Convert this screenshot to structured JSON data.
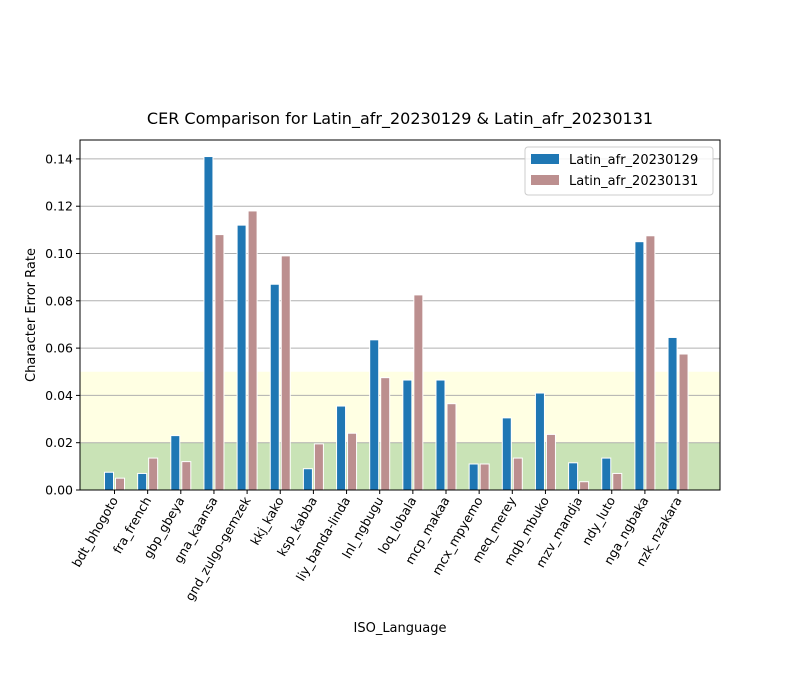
{
  "chart_data": {
    "type": "bar",
    "title": "CER Comparison for Latin_afr_20230129 & Latin_afr_20230131",
    "xlabel": "ISO_Language",
    "ylabel": "Character Error Rate",
    "ylim": [
      0,
      0.148
    ],
    "yticks": [
      "0.00",
      "0.02",
      "0.04",
      "0.06",
      "0.08",
      "0.10",
      "0.12",
      "0.14"
    ],
    "grid": true,
    "legend_position": "top-right",
    "bands": [
      {
        "from": 0,
        "to": 0.02,
        "color": "#c9e3b6"
      },
      {
        "from": 0.02,
        "to": 0.05,
        "color": "#ffffe3"
      }
    ],
    "categories": [
      "bdt_bhogoto",
      "fra_french",
      "gbp_gbeya",
      "gna_kaansa",
      "gnd_zulgo-gemzek",
      "kkj_kako",
      "ksp_kabba",
      "liy_banda-linda",
      "lnl_ngbugu",
      "loq_lobala",
      "mcp_makaa",
      "mcx_mpyemo",
      "meq_merey",
      "mqb_mbuko",
      "mzv_mandja",
      "ndy_luto",
      "nga_ngbaka",
      "nzk_nzakara"
    ],
    "series": [
      {
        "name": "Latin_afr_20230129",
        "color": "#1f77b4",
        "values": [
          0.0075,
          0.007,
          0.023,
          0.141,
          0.112,
          0.087,
          0.009,
          0.0355,
          0.0635,
          0.0465,
          0.0465,
          0.011,
          0.0305,
          0.041,
          0.0115,
          0.0135,
          0.105,
          0.0645
        ]
      },
      {
        "name": "Latin_afr_20230131",
        "color": "#bc8f8f",
        "values": [
          0.005,
          0.0135,
          0.012,
          0.108,
          0.118,
          0.099,
          0.0195,
          0.024,
          0.0475,
          0.0825,
          0.0365,
          0.011,
          0.0135,
          0.0235,
          0.0035,
          0.007,
          0.1075,
          0.0575
        ]
      }
    ]
  }
}
